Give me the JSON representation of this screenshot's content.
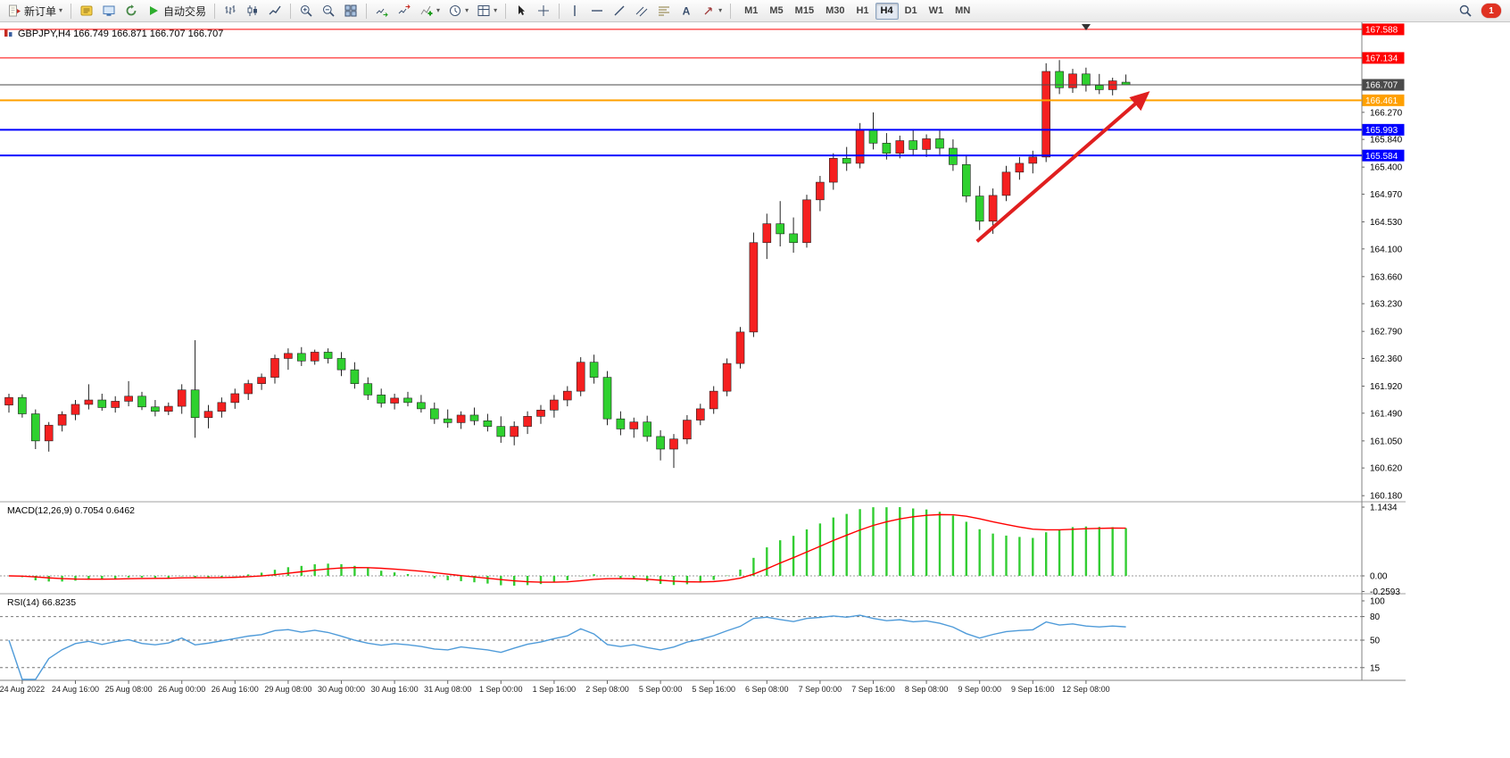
{
  "toolbar": {
    "new_order_label": "新订单",
    "autotrading_label": "自动交易",
    "timeframes": [
      "M1",
      "M5",
      "M15",
      "M30",
      "H1",
      "H4",
      "D1",
      "W1",
      "MN"
    ],
    "active_timeframe": "H4",
    "notification_badge": "1",
    "icon_names": [
      "new-order-icon",
      "metaeditor-icon",
      "terminal-icon",
      "refresh-icon",
      "autotrading-play-icon",
      "bar-chart-icon",
      "candlestick-icon",
      "line-chart-icon",
      "zoom-in-icon",
      "zoom-out-icon",
      "tile-windows-icon",
      "auto-scroll-icon",
      "chart-shift-icon",
      "indicators-icon",
      "periods-icon",
      "templates-icon",
      "cursor-icon",
      "crosshair-icon",
      "vertical-line-icon",
      "horizontal-line-icon",
      "trendline-icon",
      "channel-icon",
      "fibonacci-icon",
      "text-icon",
      "arrows-icon",
      "shapes-icon",
      "search-icon"
    ]
  },
  "chart_data": {
    "type": "candlestick",
    "symbol": "GBPJPY",
    "period": "H4",
    "title": "GBPJPY,H4  166.749 166.871 166.707 166.707",
    "bull_color": "#f52020",
    "bear_color": "#2fd12f",
    "candle_outline": "#222222",
    "price_range": [
      160.14,
      167.7
    ],
    "ohlc": [
      [
        161.62,
        161.8,
        161.5,
        161.74
      ],
      [
        161.74,
        161.79,
        161.42,
        161.48
      ],
      [
        161.48,
        161.55,
        160.92,
        161.05
      ],
      [
        161.05,
        161.35,
        160.88,
        161.3
      ],
      [
        161.3,
        161.52,
        161.2,
        161.47
      ],
      [
        161.47,
        161.7,
        161.38,
        161.63
      ],
      [
        161.63,
        161.95,
        161.55,
        161.7
      ],
      [
        161.7,
        161.8,
        161.53,
        161.58
      ],
      [
        161.58,
        161.76,
        161.5,
        161.68
      ],
      [
        161.68,
        162.0,
        161.6,
        161.76
      ],
      [
        161.76,
        161.83,
        161.54,
        161.59
      ],
      [
        161.59,
        161.7,
        161.44,
        161.52
      ],
      [
        161.52,
        161.66,
        161.46,
        161.6
      ],
      [
        161.6,
        161.95,
        161.48,
        161.86
      ],
      [
        161.86,
        162.65,
        161.1,
        161.42
      ],
      [
        161.42,
        161.62,
        161.25,
        161.52
      ],
      [
        161.52,
        161.74,
        161.42,
        161.66
      ],
      [
        161.66,
        161.88,
        161.56,
        161.8
      ],
      [
        161.8,
        162.02,
        161.7,
        161.96
      ],
      [
        161.96,
        162.12,
        161.86,
        162.06
      ],
      [
        162.06,
        162.42,
        161.96,
        162.36
      ],
      [
        162.36,
        162.52,
        162.18,
        162.44
      ],
      [
        162.44,
        162.54,
        162.24,
        162.32
      ],
      [
        162.32,
        162.5,
        162.26,
        162.46
      ],
      [
        162.46,
        162.52,
        162.28,
        162.36
      ],
      [
        162.36,
        162.46,
        162.08,
        162.18
      ],
      [
        162.18,
        162.3,
        161.88,
        161.96
      ],
      [
        161.96,
        162.06,
        161.7,
        161.78
      ],
      [
        161.78,
        161.88,
        161.58,
        161.65
      ],
      [
        161.65,
        161.8,
        161.55,
        161.73
      ],
      [
        161.73,
        161.83,
        161.6,
        161.66
      ],
      [
        161.66,
        161.78,
        161.5,
        161.56
      ],
      [
        161.56,
        161.66,
        161.32,
        161.4
      ],
      [
        161.4,
        161.55,
        161.26,
        161.34
      ],
      [
        161.34,
        161.52,
        161.24,
        161.46
      ],
      [
        161.46,
        161.58,
        161.3,
        161.37
      ],
      [
        161.37,
        161.48,
        161.2,
        161.28
      ],
      [
        161.28,
        161.44,
        161.02,
        161.12
      ],
      [
        161.12,
        161.36,
        160.98,
        161.28
      ],
      [
        161.28,
        161.52,
        161.16,
        161.44
      ],
      [
        161.44,
        161.62,
        161.32,
        161.54
      ],
      [
        161.54,
        161.78,
        161.42,
        161.7
      ],
      [
        161.7,
        161.92,
        161.6,
        161.84
      ],
      [
        161.84,
        162.38,
        161.76,
        162.3
      ],
      [
        162.3,
        162.42,
        161.96,
        162.06
      ],
      [
        162.06,
        162.16,
        161.3,
        161.4
      ],
      [
        161.4,
        161.52,
        161.14,
        161.24
      ],
      [
        161.24,
        161.42,
        161.1,
        161.35
      ],
      [
        161.35,
        161.45,
        161.04,
        161.12
      ],
      [
        161.12,
        161.22,
        160.74,
        160.92
      ],
      [
        160.92,
        161.16,
        160.62,
        161.08
      ],
      [
        161.08,
        161.46,
        161.0,
        161.38
      ],
      [
        161.38,
        161.64,
        161.3,
        161.56
      ],
      [
        161.56,
        161.92,
        161.48,
        161.84
      ],
      [
        161.84,
        162.36,
        161.76,
        162.28
      ],
      [
        162.28,
        162.86,
        162.2,
        162.78
      ],
      [
        162.78,
        164.36,
        162.7,
        164.2
      ],
      [
        164.2,
        164.66,
        163.94,
        164.5
      ],
      [
        164.5,
        164.86,
        164.14,
        164.34
      ],
      [
        164.34,
        164.6,
        164.04,
        164.2
      ],
      [
        164.2,
        164.96,
        164.12,
        164.88
      ],
      [
        164.88,
        165.26,
        164.7,
        165.16
      ],
      [
        165.16,
        165.62,
        165.04,
        165.54
      ],
      [
        165.54,
        165.72,
        165.34,
        165.46
      ],
      [
        165.46,
        166.1,
        165.38,
        166.0
      ],
      [
        166.0,
        166.27,
        165.68,
        165.78
      ],
      [
        165.78,
        165.94,
        165.52,
        165.62
      ],
      [
        165.62,
        165.9,
        165.54,
        165.82
      ],
      [
        165.82,
        166.0,
        165.58,
        165.68
      ],
      [
        165.68,
        165.92,
        165.56,
        165.85
      ],
      [
        165.85,
        165.98,
        165.6,
        165.7
      ],
      [
        165.7,
        165.84,
        165.34,
        165.44
      ],
      [
        165.44,
        165.58,
        164.84,
        164.94
      ],
      [
        164.94,
        165.1,
        164.4,
        164.54
      ],
      [
        164.54,
        165.06,
        164.34,
        164.95
      ],
      [
        164.95,
        165.42,
        164.86,
        165.32
      ],
      [
        165.32,
        165.56,
        165.2,
        165.46
      ],
      [
        165.46,
        165.66,
        165.3,
        165.56
      ],
      [
        165.56,
        167.05,
        165.48,
        166.92
      ],
      [
        166.92,
        167.1,
        166.56,
        166.66
      ],
      [
        166.66,
        166.96,
        166.58,
        166.88
      ],
      [
        166.88,
        166.98,
        166.6,
        166.7
      ],
      [
        166.7,
        166.88,
        166.56,
        166.63
      ],
      [
        166.63,
        166.82,
        166.54,
        166.77
      ],
      [
        166.749,
        166.871,
        166.707,
        166.707
      ]
    ],
    "time_labels": [
      {
        "bar": 1,
        "text": "24 Aug 2022"
      },
      {
        "bar": 5,
        "text": "24 Aug 16:00"
      },
      {
        "bar": 9,
        "text": "25 Aug 08:00"
      },
      {
        "bar": 13,
        "text": "26 Aug 00:00"
      },
      {
        "bar": 17,
        "text": "26 Aug 16:00"
      },
      {
        "bar": 21,
        "text": "29 Aug 08:00"
      },
      {
        "bar": 25,
        "text": "30 Aug 00:00"
      },
      {
        "bar": 29,
        "text": "30 Aug 16:00"
      },
      {
        "bar": 33,
        "text": "31 Aug 08:00"
      },
      {
        "bar": 37,
        "text": "1 Sep 00:00"
      },
      {
        "bar": 41,
        "text": "1 Sep 16:00"
      },
      {
        "bar": 45,
        "text": "2 Sep 08:00"
      },
      {
        "bar": 49,
        "text": "5 Sep 00:00"
      },
      {
        "bar": 53,
        "text": "5 Sep 16:00"
      },
      {
        "bar": 57,
        "text": "6 Sep 08:00"
      },
      {
        "bar": 61,
        "text": "7 Sep 00:00"
      },
      {
        "bar": 65,
        "text": "7 Sep 16:00"
      },
      {
        "bar": 69,
        "text": "8 Sep 08:00"
      },
      {
        "bar": 73,
        "text": "9 Sep 00:00"
      },
      {
        "bar": 77,
        "text": "9 Sep 16:00"
      },
      {
        "bar": 81,
        "text": "12 Sep 08:00"
      }
    ],
    "price_axis_ticks": [
      "166.270",
      "165.840",
      "165.400",
      "164.970",
      "164.530",
      "164.100",
      "163.660",
      "163.230",
      "162.790",
      "162.360",
      "161.920",
      "161.490",
      "161.050",
      "160.620",
      "160.180"
    ],
    "hlines": [
      {
        "label": "167.588",
        "price": 167.588,
        "color": "#ff0000",
        "width": 1,
        "role": "resistance"
      },
      {
        "label": "167.134",
        "price": 167.134,
        "color": "#ff0000",
        "width": 1,
        "role": "resistance"
      },
      {
        "label": "166.707",
        "price": 166.707,
        "color": "#4a4a4a",
        "width": 1,
        "role": "current-price"
      },
      {
        "label": "166.461",
        "price": 166.461,
        "color": "#ffa000",
        "width": 2,
        "role": "level"
      },
      {
        "label": "165.993",
        "price": 165.993,
        "color": "#0000ff",
        "width": 2,
        "role": "support"
      },
      {
        "label": "165.584",
        "price": 165.584,
        "color": "#0000ff",
        "width": 2,
        "role": "support"
      }
    ],
    "arrow": {
      "from_bar": 72.8,
      "from_price": 164.22,
      "to_bar": 85.5,
      "to_price": 166.55,
      "color": "#e01f1f"
    },
    "indicators": {
      "macd": {
        "label": "MACD(12,26,9) 0.7054 0.6462",
        "fast": 12,
        "slow": 26,
        "signal": 9,
        "value_main": "0.7054",
        "value_signal": "0.6462",
        "axis_labels": [
          "1.1434",
          "0.00",
          "-0.2593"
        ],
        "axis_values": [
          1.1434,
          0,
          -0.2593
        ],
        "histogram_color": "#32cd32",
        "signal_color": "#ff0000"
      },
      "rsi": {
        "label": "RSI(14) 66.8235",
        "period": 14,
        "value": "66.8235",
        "levels": [
          80,
          50,
          15
        ],
        "axis_labels": [
          "100",
          "80",
          "50",
          "15"
        ],
        "axis_values": [
          100,
          80,
          50,
          15
        ],
        "line_color": "#4f9bd9"
      }
    }
  }
}
